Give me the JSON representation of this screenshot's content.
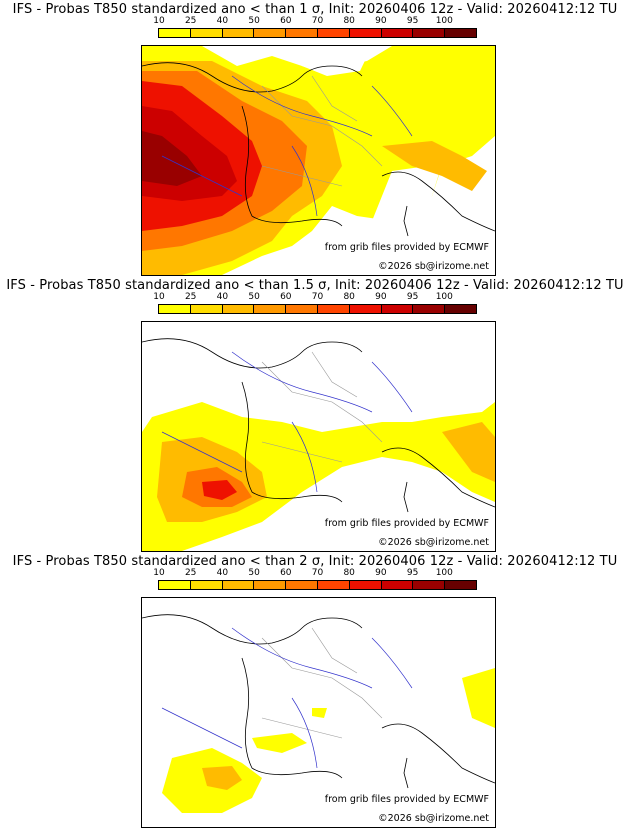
{
  "panels": [
    {
      "title": "IFS - Probas T850  standardized ano < than 1 σ, Init: 20260406 12z - Valid: 20260412:12 TU"
    },
    {
      "title": "IFS - Probas T850  standardized ano < than 1.5 σ, Init: 20260406 12z - Valid: 20260412:12 TU"
    },
    {
      "title": "IFS - Probas T850  standardized ano < than 2 σ, Init: 20260406 12z - Valid: 20260412:12 TU"
    }
  ],
  "scale": {
    "labels": [
      "10",
      "25",
      "40",
      "50",
      "60",
      "70",
      "80",
      "90",
      "95",
      "100"
    ],
    "colors": [
      "#ffff00",
      "#ffdd00",
      "#ffbb00",
      "#ff9900",
      "#ff7700",
      "#ff4400",
      "#ee1100",
      "#cc0000",
      "#990000",
      "#660000"
    ]
  },
  "credits": {
    "source": "from grib files provided by ECMWF",
    "copyright": "©2026 sb@irizome.net"
  }
}
